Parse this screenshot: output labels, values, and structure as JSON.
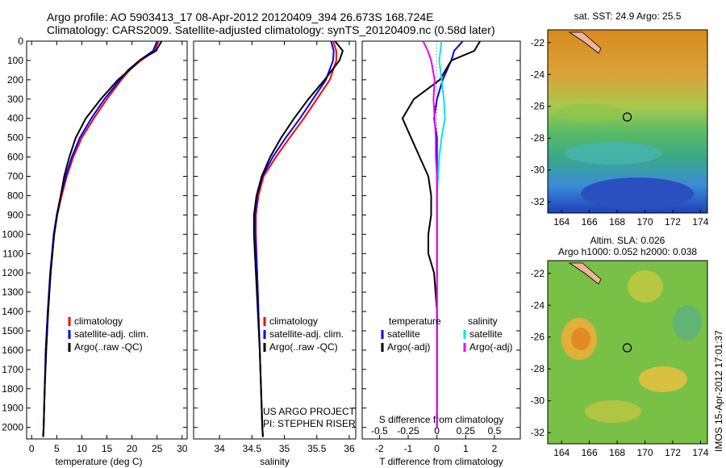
{
  "header": {
    "line1": "Argo profile: AO 5903413_17 08-Apr-2012 20120409_394 26.673S 168.724E",
    "line2": "Climatology: CARS2009. Satellite-adjusted climatology: synTS_20120409.nc (0.58d later)"
  },
  "stamp": "IMOS 15-Apr-2012 17:01:37",
  "colors": {
    "climatology": "#ff0000",
    "satellite": "#0000ff",
    "argo": "#000000",
    "salinity_sat": "#00e5ee",
    "salinity_argo": "#ee00ee"
  },
  "chart_data": [
    {
      "type": "line",
      "name": "temperature-panel",
      "xlabel": "temperature (deg C)",
      "ylabel": "",
      "xlim": [
        -1,
        31
      ],
      "ylim": [
        2060,
        0
      ],
      "xticks": [
        0,
        5,
        10,
        15,
        20,
        25,
        30
      ],
      "yticks": [
        0,
        100,
        200,
        300,
        400,
        500,
        600,
        700,
        800,
        900,
        1000,
        1100,
        1200,
        1300,
        1400,
        1500,
        1600,
        1700,
        1800,
        1900,
        2000
      ],
      "legend": [
        "climatology",
        "satellite-adj. clim.",
        "Argo(..raw -QC)"
      ],
      "depth": [
        0,
        50,
        100,
        150,
        200,
        300,
        400,
        500,
        600,
        700,
        800,
        900,
        1000,
        1200,
        1400,
        1600,
        1800,
        2000,
        2050
      ],
      "series": [
        {
          "name": "climatology",
          "values": [
            25.3,
            24.5,
            21.8,
            19.5,
            17.9,
            15.0,
            12.4,
            10.0,
            8.3,
            7.0,
            6.0,
            5.1,
            4.5,
            3.8,
            3.3,
            2.9,
            2.6,
            2.4,
            2.3
          ]
        },
        {
          "name": "satellite-adj. clim.",
          "values": [
            25.0,
            24.2,
            21.5,
            19.2,
            17.6,
            14.5,
            11.9,
            9.6,
            8.0,
            6.8,
            5.8,
            5.0,
            4.4,
            3.7,
            3.2,
            2.8,
            2.6,
            2.4,
            2.3
          ]
        },
        {
          "name": "Argo(..raw -QC)",
          "values": [
            25.9,
            24.8,
            21.5,
            19.5,
            17.2,
            13.8,
            10.8,
            8.8,
            7.5,
            6.5,
            5.8,
            5.1,
            4.5,
            3.8,
            3.3,
            2.9,
            2.6,
            2.4,
            2.3
          ]
        }
      ]
    },
    {
      "type": "line",
      "name": "salinity-panel",
      "xlabel": "salinity",
      "xlim": [
        33.6,
        36.1
      ],
      "ylim": [
        2060,
        0
      ],
      "xticks": [
        34,
        34.5,
        35,
        35.5,
        36
      ],
      "legend": [
        "climatology",
        "satellite-adj. clim.",
        "Argo(..raw -QC)"
      ],
      "annotation": [
        "US ARGO PROJECT",
        "PI: STEPHEN RISER"
      ],
      "depth": [
        0,
        50,
        100,
        200,
        300,
        400,
        500,
        600,
        700,
        800,
        900,
        1000,
        1200,
        1400,
        1600,
        1800,
        2000,
        2050
      ],
      "series": [
        {
          "name": "climatology",
          "values": [
            35.75,
            35.8,
            35.8,
            35.7,
            35.5,
            35.3,
            35.08,
            34.87,
            34.68,
            34.6,
            34.56,
            34.56,
            34.58,
            34.6,
            34.62,
            34.64,
            34.66,
            34.67
          ]
        },
        {
          "name": "satellite-adj. clim.",
          "values": [
            35.72,
            35.76,
            35.75,
            35.64,
            35.44,
            35.24,
            35.02,
            34.82,
            34.66,
            34.58,
            34.55,
            34.55,
            34.58,
            34.6,
            34.62,
            34.64,
            34.66,
            34.67
          ]
        },
        {
          "name": "Argo(..raw -QC)",
          "values": [
            35.78,
            35.9,
            35.85,
            35.62,
            35.37,
            35.15,
            34.95,
            34.78,
            34.65,
            34.57,
            34.53,
            34.53,
            34.56,
            34.59,
            34.62,
            34.64,
            34.66,
            34.67
          ]
        }
      ]
    },
    {
      "type": "line",
      "name": "difference-panel",
      "xlabel_top": "S difference from climatology",
      "xlabel": "T difference from climatology",
      "xticks_s": [
        -0.5,
        -0.25,
        0,
        0.25,
        0.5
      ],
      "xticks_t": [
        -2,
        -1,
        0,
        1,
        2
      ],
      "xlim_t": [
        -2.6,
        2.9
      ],
      "ylim": [
        2060,
        0
      ],
      "legend_left_title": "temperature",
      "legend_right_title": "salinity",
      "legend": [
        "satellite",
        "Argo(-adj)",
        "satellite",
        "Argo(-adj)"
      ],
      "depth": [
        0,
        50,
        100,
        200,
        300,
        400,
        500,
        600,
        700,
        800,
        900,
        1000,
        1100,
        1200,
        1400,
        1600,
        1800,
        2000
      ],
      "series": [
        {
          "name": "temperature satellite",
          "values": [
            0.9,
            0.6,
            0.5,
            0.2,
            0.0,
            -0.1,
            0.0,
            0.0,
            0.0,
            0.0,
            0.0,
            0.0,
            0.0,
            0.0,
            0.0,
            0.0,
            0.0,
            0.0
          ]
        },
        {
          "name": "temperature Argo(-adj)",
          "values": [
            1.5,
            1.3,
            0.5,
            0.1,
            -0.8,
            -1.2,
            -0.9,
            -0.6,
            -0.3,
            -0.2,
            -0.2,
            -0.3,
            -0.3,
            -0.1,
            0.0,
            0.0,
            0.0,
            0.0
          ]
        },
        {
          "name": "salinity satellite",
          "values": [
            0.04,
            0.03,
            0.02,
            0.04,
            0.06,
            0.07,
            0.04,
            0.02,
            0.01,
            0.0,
            0.0,
            0.0,
            0.0,
            0.0,
            0.0,
            0.0,
            0.0,
            0.0
          ]
        },
        {
          "name": "salinity Argo(-adj)",
          "values": [
            -0.12,
            -0.08,
            -0.05,
            -0.02,
            -0.03,
            -0.02,
            -0.01,
            -0.01,
            0.0,
            0.0,
            0.0,
            0.0,
            0.0,
            0.0,
            0.0,
            0.0,
            0.0,
            0.0
          ]
        }
      ]
    },
    {
      "type": "heatmap",
      "name": "sst-map",
      "title": "sat. SST: 24.9 Argo: 25.5",
      "xticks": [
        164,
        166,
        168,
        170,
        172,
        174
      ],
      "yticks": [
        -22,
        -24,
        -26,
        -28,
        -30,
        -32
      ],
      "xlim": [
        163,
        174.5
      ],
      "ylim": [
        -32.7,
        -21.2
      ],
      "marker": {
        "lon": 168.724,
        "lat": -26.673
      }
    },
    {
      "type": "heatmap",
      "name": "sla-map",
      "title": "Altim. SLA: 0.026",
      "subtitle": "Argo h1000: 0.052 h2000: 0.038",
      "xticks": [
        164,
        166,
        168,
        170,
        172,
        174
      ],
      "yticks": [
        -22,
        -24,
        -26,
        -28,
        -30,
        -32
      ],
      "xlim": [
        163,
        174.5
      ],
      "ylim": [
        -32.7,
        -21.2
      ],
      "marker": {
        "lon": 168.724,
        "lat": -26.673
      }
    }
  ]
}
